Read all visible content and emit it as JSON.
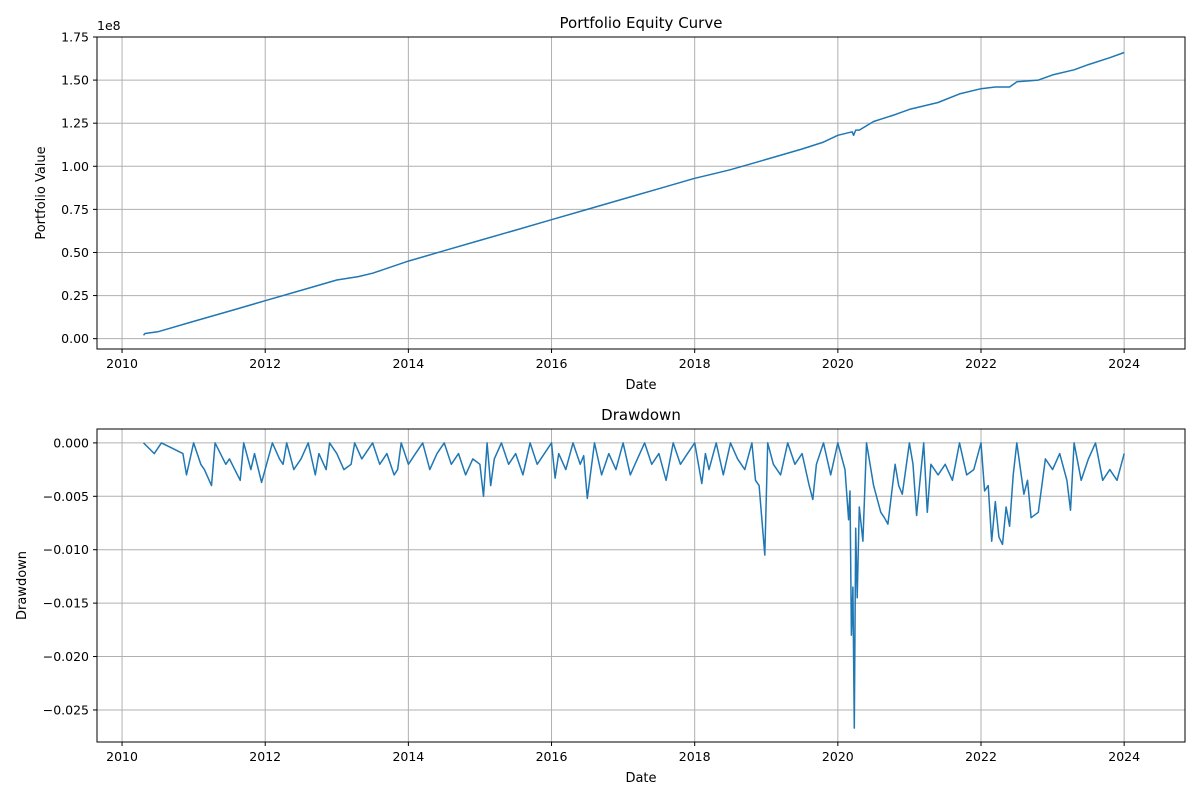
{
  "chart_data": [
    {
      "id": "equity",
      "type": "line",
      "title": "Portfolio Equity Curve",
      "xlabel": "Date",
      "ylabel": "Portfolio Value",
      "offset_text": "1e8",
      "grid": true,
      "xlim": [
        2009.65,
        2024.85
      ],
      "ylim": [
        -0.6,
        17.5
      ],
      "x_ticks": [
        2010,
        2012,
        2014,
        2016,
        2018,
        2020,
        2022,
        2024
      ],
      "x_tick_labels": [
        "2010",
        "2012",
        "2014",
        "2016",
        "2018",
        "2020",
        "2022",
        "2024"
      ],
      "y_ticks": [
        0,
        2.5,
        5,
        7.5,
        10,
        12.5,
        15,
        17.5
      ],
      "y_tick_labels": [
        "0.00",
        "0.25",
        "0.50",
        "0.75",
        "1.00",
        "1.25",
        "1.50",
        "1.75"
      ],
      "color": "#1f77b4",
      "series": [
        {
          "x": [
            2010.3,
            2010.32,
            2010.5,
            2011.0,
            2011.5,
            2012.0,
            2012.5,
            2013.0,
            2013.3,
            2013.5,
            2014.0,
            2014.5,
            2015.0,
            2015.5,
            2016.0,
            2016.5,
            2017.0,
            2017.5,
            2018.0,
            2018.3,
            2018.5,
            2019.0,
            2019.5,
            2019.8,
            2020.0,
            2020.2,
            2020.22,
            2020.25,
            2020.3,
            2020.5,
            2020.8,
            2021.0,
            2021.4,
            2021.7,
            2022.0,
            2022.2,
            2022.4,
            2022.5,
            2022.8,
            2023.0,
            2023.3,
            2023.5,
            2023.8,
            2024.0
          ],
          "y": [
            0.2,
            0.3,
            0.4,
            1.0,
            1.6,
            2.2,
            2.8,
            3.4,
            3.6,
            3.8,
            4.5,
            5.1,
            5.7,
            6.3,
            6.9,
            7.5,
            8.1,
            8.7,
            9.3,
            9.6,
            9.8,
            10.4,
            11.0,
            11.4,
            11.8,
            12.0,
            11.8,
            12.1,
            12.1,
            12.6,
            13.0,
            13.3,
            13.7,
            14.2,
            14.5,
            14.6,
            14.6,
            14.9,
            15.0,
            15.3,
            15.6,
            15.9,
            16.3,
            16.6
          ]
        }
      ]
    },
    {
      "id": "drawdown",
      "type": "line",
      "title": "Drawdown",
      "xlabel": "Date",
      "ylabel": "Drawdown",
      "grid": true,
      "xlim": [
        2009.65,
        2024.85
      ],
      "ylim": [
        -0.028,
        0.0013
      ],
      "x_ticks": [
        2010,
        2012,
        2014,
        2016,
        2018,
        2020,
        2022,
        2024
      ],
      "x_tick_labels": [
        "2010",
        "2012",
        "2014",
        "2016",
        "2018",
        "2020",
        "2022",
        "2024"
      ],
      "y_ticks": [
        0.0,
        -0.005,
        -0.01,
        -0.015,
        -0.02,
        -0.025
      ],
      "y_tick_labels": [
        "0.000",
        "−0.005",
        "−0.010",
        "−0.015",
        "−0.020",
        "−0.025"
      ],
      "color": "#1f77b4",
      "series": [
        {
          "x": [
            2010.3,
            2010.45,
            2010.55,
            2010.7,
            2010.85,
            2010.9,
            2011.0,
            2011.1,
            2011.15,
            2011.25,
            2011.3,
            2011.45,
            2011.5,
            2011.65,
            2011.7,
            2011.8,
            2011.85,
            2011.95,
            2012.1,
            2012.2,
            2012.25,
            2012.3,
            2012.4,
            2012.5,
            2012.6,
            2012.7,
            2012.75,
            2012.85,
            2012.9,
            2013.0,
            2013.1,
            2013.2,
            2013.25,
            2013.35,
            2013.4,
            2013.5,
            2013.6,
            2013.7,
            2013.8,
            2013.85,
            2013.9,
            2014.0,
            2014.1,
            2014.2,
            2014.3,
            2014.4,
            2014.5,
            2014.6,
            2014.7,
            2014.8,
            2014.9,
            2015.0,
            2015.05,
            2015.1,
            2015.15,
            2015.2,
            2015.3,
            2015.4,
            2015.5,
            2015.6,
            2015.65,
            2015.7,
            2015.8,
            2015.9,
            2016.0,
            2016.05,
            2016.1,
            2016.2,
            2016.3,
            2016.4,
            2016.45,
            2016.5,
            2016.6,
            2016.7,
            2016.8,
            2016.9,
            2017.0,
            2017.1,
            2017.2,
            2017.3,
            2017.4,
            2017.5,
            2017.6,
            2017.7,
            2017.8,
            2017.9,
            2018.0,
            2018.1,
            2018.15,
            2018.2,
            2018.3,
            2018.4,
            2018.5,
            2018.6,
            2018.7,
            2018.8,
            2018.85,
            2018.9,
            2018.98,
            2019.02,
            2019.1,
            2019.2,
            2019.3,
            2019.4,
            2019.5,
            2019.6,
            2019.65,
            2019.7,
            2019.8,
            2019.9,
            2020.0,
            2020.1,
            2020.15,
            2020.17,
            2020.19,
            2020.21,
            2020.23,
            2020.25,
            2020.27,
            2020.3,
            2020.35,
            2020.4,
            2020.5,
            2020.6,
            2020.65,
            2020.7,
            2020.8,
            2020.85,
            2020.9,
            2021.0,
            2021.05,
            2021.1,
            2021.2,
            2021.25,
            2021.3,
            2021.4,
            2021.5,
            2021.6,
            2021.7,
            2021.8,
            2021.9,
            2022.0,
            2022.05,
            2022.1,
            2022.15,
            2022.2,
            2022.25,
            2022.3,
            2022.35,
            2022.4,
            2022.45,
            2022.5,
            2022.6,
            2022.65,
            2022.7,
            2022.8,
            2022.9,
            2023.0,
            2023.1,
            2023.2,
            2023.25,
            2023.3,
            2023.4,
            2023.5,
            2023.6,
            2023.7,
            2023.8,
            2023.9,
            2024.0
          ],
          "y": [
            0.0,
            -0.001,
            0.0,
            -0.0005,
            -0.001,
            -0.003,
            0.0,
            -0.002,
            -0.0025,
            -0.004,
            0.0,
            -0.002,
            -0.0015,
            -0.0035,
            0.0,
            -0.0025,
            -0.001,
            -0.0037,
            0.0,
            -0.0015,
            -0.002,
            0.0,
            -0.0025,
            -0.0015,
            0.0,
            -0.003,
            -0.001,
            -0.0025,
            0.0,
            -0.001,
            -0.0025,
            -0.002,
            0.0,
            -0.0015,
            -0.001,
            0.0,
            -0.002,
            -0.001,
            -0.003,
            -0.0025,
            0.0,
            -0.002,
            -0.001,
            0.0,
            -0.0025,
            -0.001,
            0.0,
            -0.002,
            -0.001,
            -0.003,
            -0.0015,
            -0.002,
            -0.005,
            0.0,
            -0.004,
            -0.0015,
            0.0,
            -0.002,
            -0.001,
            -0.003,
            -0.0015,
            0.0,
            -0.002,
            -0.001,
            0.0,
            -0.0033,
            -0.001,
            -0.0025,
            0.0,
            -0.002,
            -0.0012,
            -0.0052,
            0.0,
            -0.003,
            -0.001,
            -0.0025,
            0.0,
            -0.003,
            -0.0015,
            0.0,
            -0.002,
            -0.001,
            -0.0035,
            0.0,
            -0.002,
            -0.001,
            0.0,
            -0.0038,
            -0.001,
            -0.0025,
            0.0,
            -0.003,
            0.0,
            -0.0015,
            -0.0025,
            0.0,
            -0.0035,
            -0.004,
            -0.0105,
            0.0,
            -0.002,
            -0.003,
            0.0,
            -0.002,
            -0.001,
            -0.004,
            -0.0053,
            -0.002,
            0.0,
            -0.003,
            0.0,
            -0.0025,
            -0.0072,
            -0.0045,
            -0.018,
            -0.0135,
            -0.0267,
            -0.008,
            -0.0145,
            -0.006,
            -0.0092,
            0.0,
            -0.004,
            -0.0065,
            -0.007,
            -0.0076,
            -0.002,
            -0.004,
            -0.0048,
            0.0,
            -0.002,
            -0.0068,
            0.0,
            -0.0065,
            -0.002,
            -0.003,
            -0.002,
            -0.0035,
            0.0,
            -0.003,
            -0.0025,
            0.0,
            -0.0045,
            -0.004,
            -0.0092,
            -0.0055,
            -0.0088,
            -0.0095,
            -0.006,
            -0.0078,
            -0.003,
            0.0,
            -0.0048,
            -0.0035,
            -0.007,
            -0.0065,
            -0.0015,
            -0.0025,
            -0.001,
            -0.0035,
            -0.0063,
            0.0,
            -0.0035,
            -0.0015,
            0.0,
            -0.0035,
            -0.0025,
            -0.0035,
            -0.001
          ]
        }
      ]
    }
  ]
}
